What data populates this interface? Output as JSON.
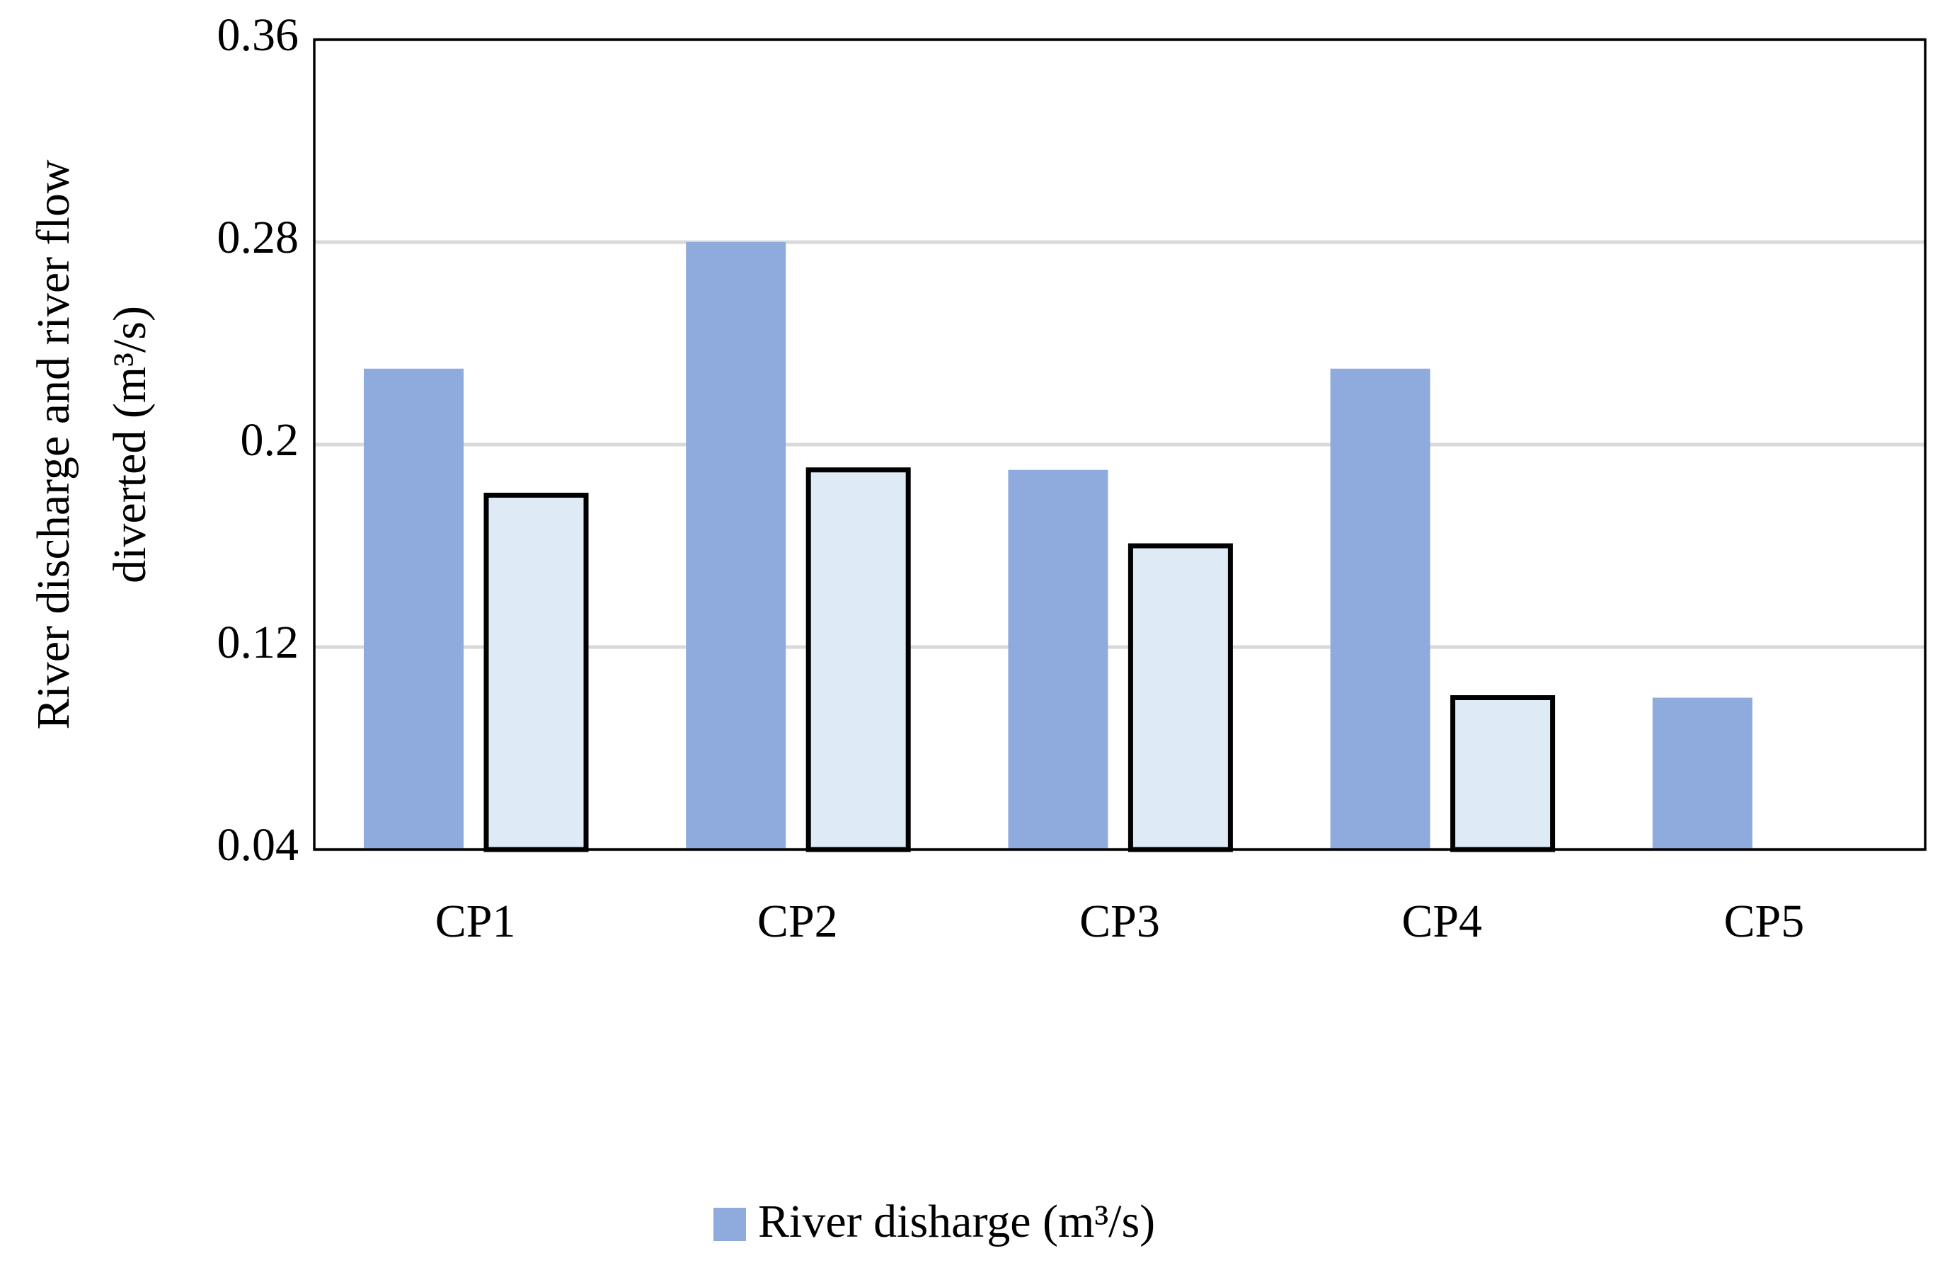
{
  "chart_data": {
    "type": "bar",
    "ylabel": [
      "River discharge and river flow",
      "diverted (m³/s)"
    ],
    "categories": [
      "CP1",
      "CP2",
      "CP3",
      "CP4",
      "CP5"
    ],
    "series": [
      {
        "name": "River disharge (m³/s)",
        "color": "#8faadc",
        "values": [
          0.23,
          0.28,
          0.19,
          0.23,
          0.1
        ]
      },
      {
        "color": "#deebf7",
        "edgecolor": "#000000",
        "values": [
          0.18,
          0.19,
          0.16,
          0.1,
          0.04
        ]
      }
    ],
    "ylim": [
      0.04,
      0.36
    ],
    "yticks": [
      0.04,
      0.12,
      0.2,
      0.28,
      0.36
    ],
    "grid": true,
    "legend": "bottom"
  }
}
